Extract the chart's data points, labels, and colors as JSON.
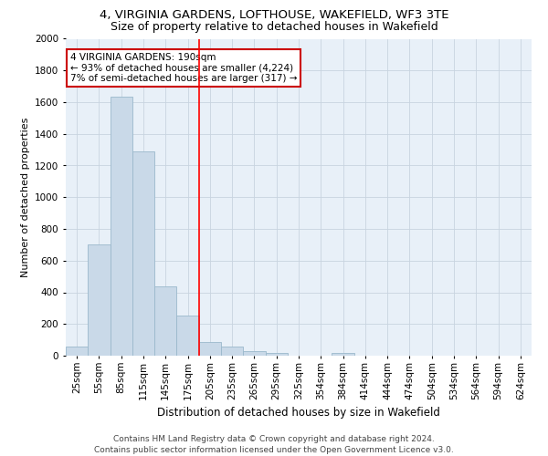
{
  "title": "4, VIRGINIA GARDENS, LOFTHOUSE, WAKEFIELD, WF3 3TE",
  "subtitle": "Size of property relative to detached houses in Wakefield",
  "xlabel": "Distribution of detached houses by size in Wakefield",
  "ylabel": "Number of detached properties",
  "bin_labels": [
    "25sqm",
    "55sqm",
    "85sqm",
    "115sqm",
    "145sqm",
    "175sqm",
    "205sqm",
    "235sqm",
    "265sqm",
    "295sqm",
    "325sqm",
    "354sqm",
    "384sqm",
    "414sqm",
    "444sqm",
    "474sqm",
    "504sqm",
    "534sqm",
    "564sqm",
    "594sqm",
    "624sqm"
  ],
  "bar_heights": [
    60,
    700,
    1635,
    1290,
    440,
    255,
    85,
    55,
    30,
    20,
    0,
    0,
    15,
    0,
    0,
    0,
    0,
    0,
    0,
    0,
    0
  ],
  "bar_color": "#c9d9e8",
  "bar_edge_color": "#9ab8cc",
  "property_line_x": 5.5,
  "property_label": "4 VIRGINIA GARDENS: 190sqm",
  "annotation_line1": "← 93% of detached houses are smaller (4,224)",
  "annotation_line2": "7% of semi-detached houses are larger (317) →",
  "annotation_box_color": "#cc0000",
  "ylim": [
    0,
    2000
  ],
  "yticks": [
    0,
    200,
    400,
    600,
    800,
    1000,
    1200,
    1400,
    1600,
    1800,
    2000
  ],
  "footer_line1": "Contains HM Land Registry data © Crown copyright and database right 2024.",
  "footer_line2": "Contains public sector information licensed under the Open Government Licence v3.0.",
  "bg_color": "#ffffff",
  "grid_color": "#c8d4e0",
  "title_fontsize": 9.5,
  "subtitle_fontsize": 9,
  "ylabel_fontsize": 8,
  "xlabel_fontsize": 8.5,
  "tick_fontsize": 7.5,
  "annotation_fontsize": 7.5,
  "footer_fontsize": 6.5
}
